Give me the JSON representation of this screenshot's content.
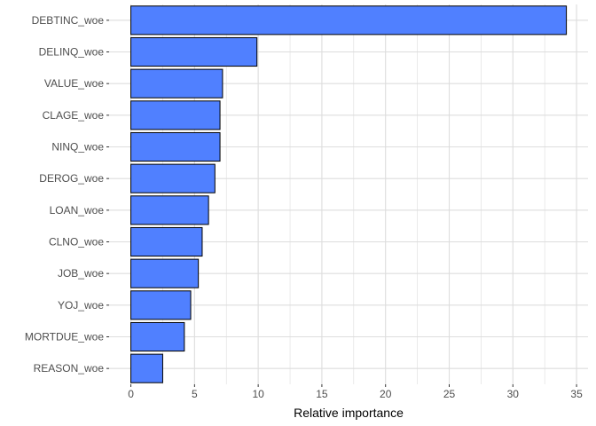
{
  "chart_data": {
    "type": "bar",
    "orientation": "horizontal",
    "categories": [
      "DEBTINC_woe",
      "DELINQ_woe",
      "VALUE_woe",
      "CLAGE_woe",
      "NINQ_woe",
      "DEROG_woe",
      "LOAN_woe",
      "CLNO_woe",
      "JOB_woe",
      "YOJ_woe",
      "MORTDUE_woe",
      "REASON_woe"
    ],
    "values": [
      34.2,
      9.9,
      7.2,
      7.0,
      7.0,
      6.6,
      6.1,
      5.6,
      5.3,
      4.7,
      4.2,
      2.5
    ],
    "xlabel": "Relative importance",
    "ylabel": "",
    "xlim": [
      -1.71,
      35.9
    ],
    "xticks": [
      0,
      5,
      10,
      15,
      20,
      25,
      30,
      35
    ],
    "grid": true,
    "colors": {
      "bar_fill": "#5080FF",
      "bar_stroke": "#000000",
      "grid": "#DDDDDD"
    }
  }
}
